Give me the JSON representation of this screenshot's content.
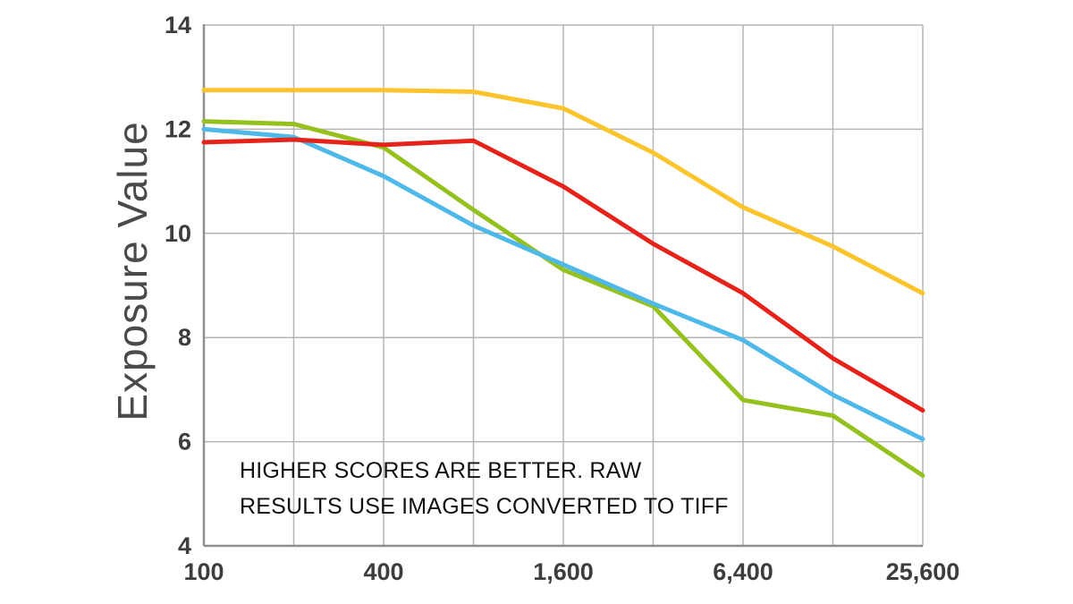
{
  "chart_data": {
    "type": "line",
    "title": "",
    "ylabel": "Exposure Value",
    "xlabel": "",
    "x_values": [
      100,
      200,
      400,
      800,
      1600,
      3200,
      6400,
      12800,
      25600
    ],
    "x_scale": "log2",
    "xtick_labels": [
      "100",
      "400",
      "1,600",
      "6,400",
      "25,600"
    ],
    "xtick_indices": [
      0,
      2,
      4,
      6,
      8
    ],
    "ylim": [
      4,
      14
    ],
    "ytick_values": [
      4,
      6,
      8,
      10,
      12,
      14
    ],
    "grid": true,
    "legend_position": "none",
    "annotation_lines": [
      "HIGHER SCORES ARE BETTER. RAW",
      "RESULTS USE IMAGES CONVERTED TO TIFF"
    ],
    "series": [
      {
        "name": "green",
        "color": "#95c11f",
        "values": [
          12.15,
          12.1,
          11.65,
          10.45,
          9.3,
          8.6,
          6.8,
          6.5,
          5.35
        ]
      },
      {
        "name": "blue",
        "color": "#4eb8e9",
        "values": [
          12.0,
          11.85,
          11.1,
          10.15,
          9.4,
          8.65,
          7.95,
          6.9,
          6.05
        ]
      },
      {
        "name": "red",
        "color": "#e5231b",
        "values": [
          11.75,
          11.8,
          11.7,
          11.78,
          10.9,
          9.8,
          8.85,
          7.6,
          6.6
        ]
      },
      {
        "name": "yellow",
        "color": "#fcc42c",
        "values": [
          12.75,
          12.75,
          12.75,
          12.72,
          12.4,
          11.55,
          10.5,
          9.75,
          8.85
        ]
      }
    ],
    "grid_color": "#b5b5b5",
    "axis_color": "#8f8f8f",
    "tick_color": "#3d3d3d"
  }
}
